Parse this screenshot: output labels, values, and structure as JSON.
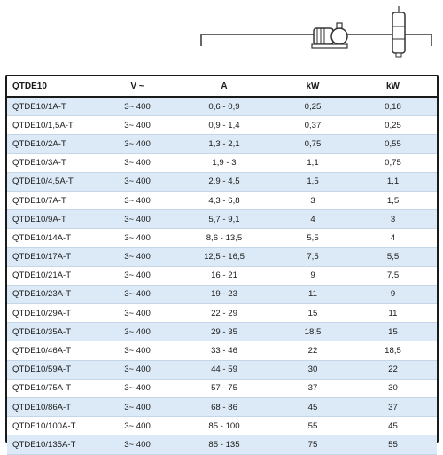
{
  "table": {
    "headers": [
      "QTDE10",
      "V ~",
      "A",
      "kW",
      "kW"
    ],
    "rows": [
      [
        "QTDE10/1A-T",
        "3~ 400",
        "0,6 - 0,9",
        "0,25",
        "0,18"
      ],
      [
        "QTDE10/1,5A-T",
        "3~ 400",
        "0,9 - 1,4",
        "0,37",
        "0,25"
      ],
      [
        "QTDE10/2A-T",
        "3~ 400",
        "1,3 - 2,1",
        "0,75",
        "0,55"
      ],
      [
        "QTDE10/3A-T",
        "3~ 400",
        "1,9 - 3",
        "1,1",
        "0,75"
      ],
      [
        "QTDE10/4,5A-T",
        "3~ 400",
        "2,9 - 4,5",
        "1,5",
        "1,1"
      ],
      [
        "QTDE10/7A-T",
        "3~ 400",
        "4,3 - 6,8",
        "3",
        "1,5"
      ],
      [
        "QTDE10/9A-T",
        "3~ 400",
        "5,7 - 9,1",
        "4",
        "3"
      ],
      [
        "QTDE10/14A-T",
        "3~ 400",
        "8,6 - 13,5",
        "5,5",
        "4"
      ],
      [
        "QTDE10/17A-T",
        "3~ 400",
        "12,5 - 16,5",
        "7,5",
        "5,5"
      ],
      [
        "QTDE10/21A-T",
        "3~ 400",
        "16 - 21",
        "9",
        "7,5"
      ],
      [
        "QTDE10/23A-T",
        "3~ 400",
        "19 - 23",
        "11",
        "9"
      ],
      [
        "QTDE10/29A-T",
        "3~ 400",
        "22 - 29",
        "15",
        "11"
      ],
      [
        "QTDE10/35A-T",
        "3~ 400",
        "29 - 35",
        "18,5",
        "15"
      ],
      [
        "QTDE10/46A-T",
        "3~ 400",
        "33 - 46",
        "22",
        "18,5"
      ],
      [
        "QTDE10/59A-T",
        "3~ 400",
        "44 - 59",
        "30",
        "22"
      ],
      [
        "QTDE10/75A-T",
        "3~ 400",
        "57 - 75",
        "37",
        "30"
      ],
      [
        "QTDE10/86A-T",
        "3~ 400",
        "68 - 86",
        "45",
        "37"
      ],
      [
        "QTDE10/100A-T",
        "3~ 400",
        "85 - 100",
        "55",
        "45"
      ],
      [
        "QTDE10/135A-T",
        "3~ 400",
        "85 - 135",
        "75",
        "55"
      ]
    ]
  },
  "icons": {
    "surface_pump": "surface-pump-icon",
    "submersible_pump": "submersible-pump-icon"
  },
  "colors": {
    "row_stripe": "#dce9f6",
    "border": "#1a1a1a"
  }
}
